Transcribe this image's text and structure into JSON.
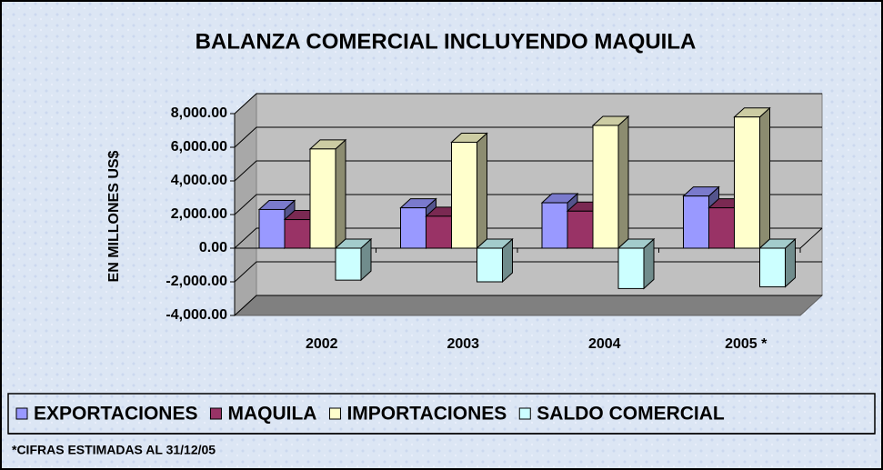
{
  "chart_data": {
    "type": "bar3d",
    "title": "BALANZA COMERCIAL INCLUYENDO MAQUILA",
    "y_label": "EN MILLONES US$",
    "footnote": "*CIFRAS ESTIMADAS AL 31/12/05",
    "categories": [
      "2002",
      "2003",
      "2004",
      "2005 *"
    ],
    "series": [
      {
        "name": "EXPORTACIONES",
        "color": "#9999ff",
        "values": [
          2300,
          2400,
          2700,
          3100
        ]
      },
      {
        "name": "MAQUILA",
        "color": "#993366",
        "values": [
          1700,
          1900,
          2200,
          2400
        ]
      },
      {
        "name": "IMPORTACIONES",
        "color": "#ffffcc",
        "values": [
          5900,
          6300,
          7300,
          7800
        ]
      },
      {
        "name": "SALDO COMERCIAL",
        "color": "#ccffff",
        "values": [
          -1900,
          -2000,
          -2400,
          -2300
        ]
      }
    ],
    "ylim": [
      -4000,
      8000
    ],
    "yticks": [
      {
        "value": -4000,
        "label": "-4,000.00"
      },
      {
        "value": -2000,
        "label": "-2,000.00"
      },
      {
        "value": 0,
        "label": "0.00"
      },
      {
        "value": 2000,
        "label": "2,000.00"
      },
      {
        "value": 4000,
        "label": "4,000.00"
      },
      {
        "value": 6000,
        "label": "6,000.00"
      },
      {
        "value": 8000,
        "label": "8,000.00"
      }
    ],
    "grid": true,
    "legend": "bottom"
  }
}
